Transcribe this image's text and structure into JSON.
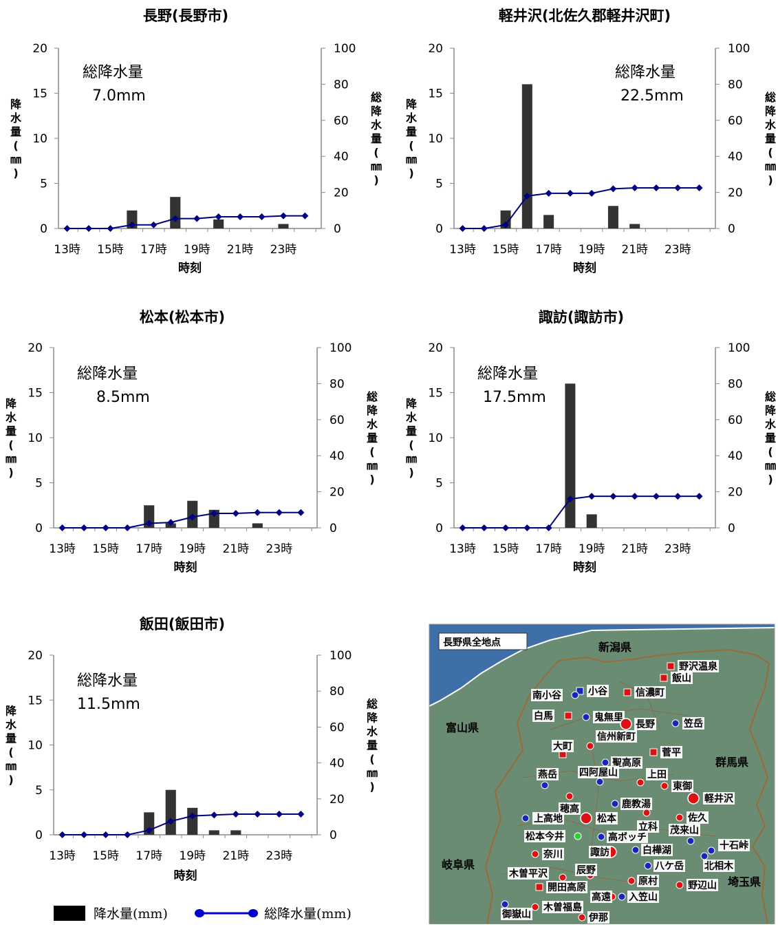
{
  "chart_data": [
    {
      "type": "bar+line",
      "title": "長野(長野市)",
      "xlabel": "時刻",
      "ylabel": "降水量(㎜)",
      "y2label": "総降水量(㎜)",
      "ylim": [
        0,
        20
      ],
      "y2lim": [
        0,
        100
      ],
      "yticks": [
        "0",
        "5",
        "10",
        "15",
        "20"
      ],
      "y2ticks": [
        "0",
        "20",
        "40",
        "60",
        "80",
        "100"
      ],
      "xticks": [
        "13時",
        "15時",
        "17時",
        "19時",
        "21時",
        "23時"
      ],
      "annotation": [
        "総降水量",
        "7.0mm"
      ],
      "hours": [
        13,
        14,
        15,
        16,
        17,
        18,
        19,
        20,
        21,
        22,
        23,
        24
      ],
      "series": [
        {
          "name": "降水量(mm)",
          "kind": "bar",
          "values": [
            0,
            0,
            0,
            2,
            0,
            3.5,
            0,
            1,
            0,
            0,
            0.5,
            0
          ]
        },
        {
          "name": "総降水量(mm)",
          "kind": "line",
          "values": [
            0,
            0,
            0,
            2,
            2,
            5.5,
            5.5,
            6.5,
            6.5,
            6.5,
            7,
            7
          ]
        }
      ]
    },
    {
      "type": "bar+line",
      "title": "軽井沢(北佐久郡軽井沢町)",
      "xlabel": "時刻",
      "ylabel": "降水量(㎜)",
      "y2label": "総降水量(㎜)",
      "ylim": [
        0,
        20
      ],
      "y2lim": [
        0,
        100
      ],
      "yticks": [
        "0",
        "5",
        "10",
        "15",
        "20"
      ],
      "y2ticks": [
        "0",
        "20",
        "40",
        "60",
        "80",
        "100"
      ],
      "xticks": [
        "13時",
        "15時",
        "17時",
        "19時",
        "21時",
        "23時"
      ],
      "annotation": [
        "総降水量",
        "22.5mm"
      ],
      "hours": [
        13,
        14,
        15,
        16,
        17,
        18,
        19,
        20,
        21,
        22,
        23,
        24
      ],
      "series": [
        {
          "name": "降水量(mm)",
          "kind": "bar",
          "values": [
            0,
            0,
            2,
            16,
            1.5,
            0,
            0,
            2.5,
            0.5,
            0,
            0,
            0
          ]
        },
        {
          "name": "総降水量(mm)",
          "kind": "line",
          "values": [
            0,
            0,
            2,
            18,
            19.5,
            19.5,
            19.5,
            22,
            22.5,
            22.5,
            22.5,
            22.5
          ]
        }
      ]
    },
    {
      "type": "bar+line",
      "title": "松本(松本市)",
      "xlabel": "時刻",
      "ylabel": "降水量(㎜)",
      "y2label": "総降水量(㎜)",
      "ylim": [
        0,
        20
      ],
      "y2lim": [
        0,
        100
      ],
      "yticks": [
        "0",
        "5",
        "10",
        "15",
        "20"
      ],
      "y2ticks": [
        "0",
        "20",
        "40",
        "60",
        "80",
        "100"
      ],
      "xticks": [
        "13時",
        "15時",
        "17時",
        "19時",
        "21時",
        "23時"
      ],
      "annotation": [
        "総降水量",
        "8.5mm"
      ],
      "hours": [
        13,
        14,
        15,
        16,
        17,
        18,
        19,
        20,
        21,
        22,
        23,
        24
      ],
      "series": [
        {
          "name": "降水量(mm)",
          "kind": "bar",
          "values": [
            0,
            0,
            0,
            0,
            2.5,
            0.5,
            3,
            2,
            0,
            0.5,
            0,
            0
          ]
        },
        {
          "name": "総降水量(mm)",
          "kind": "line",
          "values": [
            0,
            0,
            0,
            0,
            2.5,
            3,
            6,
            8,
            8,
            8.5,
            8.5,
            8.5
          ]
        }
      ]
    },
    {
      "type": "bar+line",
      "title": "諏訪(諏訪市)",
      "xlabel": "時刻",
      "ylabel": "降水量(㎜)",
      "y2label": "総降水量(㎜)",
      "ylim": [
        0,
        20
      ],
      "y2lim": [
        0,
        100
      ],
      "yticks": [
        "0",
        "5",
        "10",
        "15",
        "20"
      ],
      "y2ticks": [
        "0",
        "20",
        "40",
        "60",
        "80",
        "100"
      ],
      "xticks": [
        "13時",
        "15時",
        "17時",
        "19時",
        "21時",
        "23時"
      ],
      "annotation": [
        "総降水量",
        "17.5mm"
      ],
      "hours": [
        13,
        14,
        15,
        16,
        17,
        18,
        19,
        20,
        21,
        22,
        23,
        24
      ],
      "series": [
        {
          "name": "降水量(mm)",
          "kind": "bar",
          "values": [
            0,
            0,
            0,
            0,
            0,
            16,
            1.5,
            0,
            0,
            0,
            0,
            0
          ]
        },
        {
          "name": "総降水量(mm)",
          "kind": "line",
          "values": [
            0,
            0,
            0,
            0,
            0,
            16,
            17.5,
            17.5,
            17.5,
            17.5,
            17.5,
            17.5
          ]
        }
      ]
    },
    {
      "type": "bar+line",
      "title": "飯田(飯田市)",
      "xlabel": "時刻",
      "ylabel": "降水量(㎜)",
      "y2label": "総降水量(㎜)",
      "ylim": [
        0,
        20
      ],
      "y2lim": [
        0,
        100
      ],
      "yticks": [
        "0",
        "5",
        "10",
        "15",
        "20"
      ],
      "y2ticks": [
        "0",
        "20",
        "40",
        "60",
        "80",
        "100"
      ],
      "xticks": [
        "13時",
        "15時",
        "17時",
        "19時",
        "21時",
        "23時"
      ],
      "annotation": [
        "総降水量",
        "11.5mm"
      ],
      "hours": [
        13,
        14,
        15,
        16,
        17,
        18,
        19,
        20,
        21,
        22,
        23,
        24
      ],
      "series": [
        {
          "name": "降水量(mm)",
          "kind": "bar",
          "values": [
            0,
            0,
            0,
            0,
            2.5,
            5,
            3,
            0.5,
            0.5,
            0,
            0,
            0
          ]
        },
        {
          "name": "総降水量(mm)",
          "kind": "line",
          "values": [
            0,
            0,
            0,
            0,
            2.5,
            7.5,
            10.5,
            11,
            11.5,
            11.5,
            11.5,
            11.5
          ]
        }
      ]
    }
  ],
  "legend": {
    "bar_label": "降水量(mm)",
    "line_label": "総降水量(mm)"
  },
  "colors": {
    "bar": "#333333",
    "line": "#000080",
    "map_land": "#6a8c73",
    "map_sea": "#3f6fa8",
    "station_red": "#dd1111",
    "station_blue": "#1a24b8",
    "station_green": "#33cc33"
  },
  "map": {
    "title": "長野県全地点",
    "regions": [
      "新潟県",
      "富山県",
      "群馬県",
      "岐阜県",
      "埼玉県"
    ],
    "stations": [
      {
        "label": "野沢温泉",
        "kind": "red-square"
      },
      {
        "label": "飯山",
        "kind": "red-square"
      },
      {
        "label": "信濃町",
        "kind": "red-square"
      },
      {
        "label": "小谷",
        "kind": "blue-square"
      },
      {
        "label": "南小谷",
        "kind": "blue"
      },
      {
        "label": "白馬",
        "kind": "red-square"
      },
      {
        "label": "鬼無里",
        "kind": "blue"
      },
      {
        "label": "長野",
        "kind": "red-big"
      },
      {
        "label": "笠岳",
        "kind": "blue"
      },
      {
        "label": "大町",
        "kind": "red-square"
      },
      {
        "label": "信州新町",
        "kind": "red"
      },
      {
        "label": "菅平",
        "kind": "red-square"
      },
      {
        "label": "聖高原",
        "kind": "blue"
      },
      {
        "label": "燕岳",
        "kind": "blue"
      },
      {
        "label": "四阿屋山",
        "kind": "blue"
      },
      {
        "label": "上田",
        "kind": "red"
      },
      {
        "label": "東御",
        "kind": "red"
      },
      {
        "label": "軽井沢",
        "kind": "red-big"
      },
      {
        "label": "穂高",
        "kind": "red"
      },
      {
        "label": "鹿教湯",
        "kind": "blue"
      },
      {
        "label": "上高地",
        "kind": "blue"
      },
      {
        "label": "松本",
        "kind": "red-big"
      },
      {
        "label": "立科",
        "kind": "red"
      },
      {
        "label": "佐久",
        "kind": "red"
      },
      {
        "label": "松本今井",
        "kind": "green"
      },
      {
        "label": "高ボッチ",
        "kind": "blue"
      },
      {
        "label": "茂来山",
        "kind": "blue"
      },
      {
        "label": "十石峠",
        "kind": "blue"
      },
      {
        "label": "奈川",
        "kind": "red"
      },
      {
        "label": "諏訪",
        "kind": "red-big"
      },
      {
        "label": "白樺湖",
        "kind": "blue"
      },
      {
        "label": "北相木",
        "kind": "blue"
      },
      {
        "label": "八ケ岳",
        "kind": "blue"
      },
      {
        "label": "木曽平沢",
        "kind": "red"
      },
      {
        "label": "辰野",
        "kind": "red"
      },
      {
        "label": "原村",
        "kind": "red"
      },
      {
        "label": "野辺山",
        "kind": "red"
      },
      {
        "label": "開田高原",
        "kind": "red-square"
      },
      {
        "label": "高遠",
        "kind": "red"
      },
      {
        "label": "入笠山",
        "kind": "blue"
      },
      {
        "label": "御嶽山",
        "kind": "blue"
      },
      {
        "label": "木曽福島",
        "kind": "red"
      },
      {
        "label": "伊那",
        "kind": "red"
      }
    ]
  }
}
